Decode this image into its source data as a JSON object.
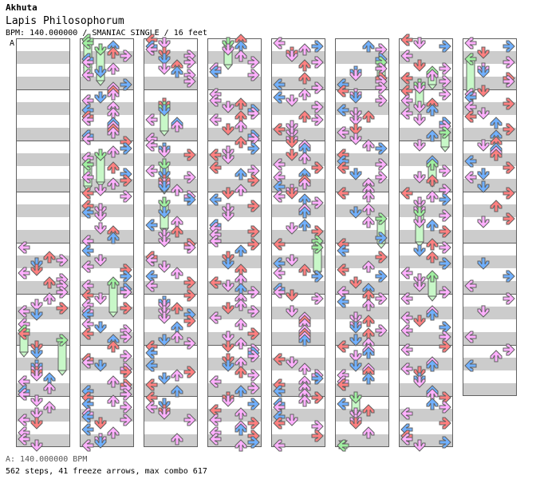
{
  "header": {
    "artist": "Akhuta",
    "title": "Lapis Philosophorum",
    "meta": "BPM: 140.000000 / SMANIAC SINGLE / 16 feet"
  },
  "chart": {
    "section_marker": "A",
    "columns": 8,
    "measures_per_column": 8,
    "total_measures": 63,
    "colors": {
      "red": "#ff8080",
      "blue": "#70b0ff",
      "pink": "#ffb0ff",
      "green": "#a0f0a0",
      "freeze": "#c8f8c8",
      "outline": "#606060",
      "stripe": "#cccccc"
    }
  },
  "footer": {
    "bpm": "A: 140.000000 BPM",
    "stats": "562 steps, 41 freeze arrows, max combo 617"
  }
}
